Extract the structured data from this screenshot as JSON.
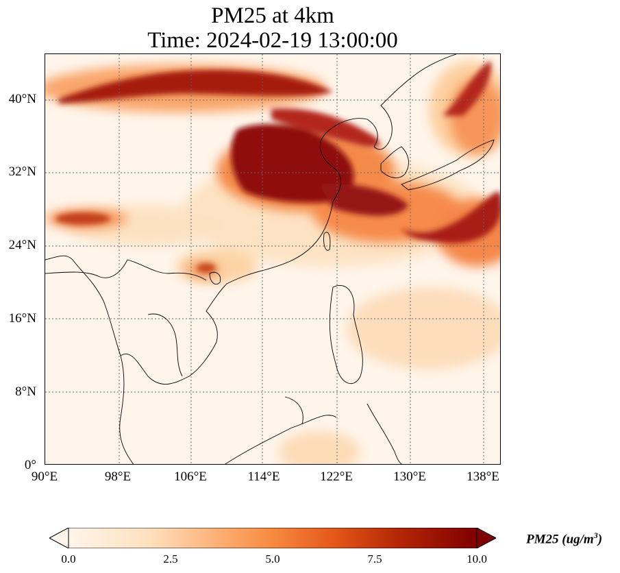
{
  "title": {
    "line1": "PM25 at 4km",
    "line2": "Time: 2024-02-19 13:00:00"
  },
  "map": {
    "lon_range": [
      90,
      139
    ],
    "lat_range": [
      0,
      45
    ],
    "lat_labels": [
      "0°",
      "8°N",
      "16°N",
      "24°N",
      "32°N",
      "40°N"
    ],
    "lon_labels": [
      "90°E",
      "98°E",
      "106°E",
      "114°E",
      "122°E",
      "130°E",
      "138°E"
    ],
    "gridlines": "dotted",
    "colormap": [
      "#fff5eb",
      "#fdd8b0",
      "#fdab67",
      "#f67c2c",
      "#d94801",
      "#a63603",
      "#7f0000"
    ]
  },
  "colorbar": {
    "min": 0.0,
    "max": 10.0,
    "ticks": [
      "0.0",
      "2.5",
      "5.0",
      "7.5",
      "10.0"
    ],
    "extend": "both",
    "label_main": "PM25 (ug/m",
    "label_sup": "3",
    "label_end": ")"
  }
}
